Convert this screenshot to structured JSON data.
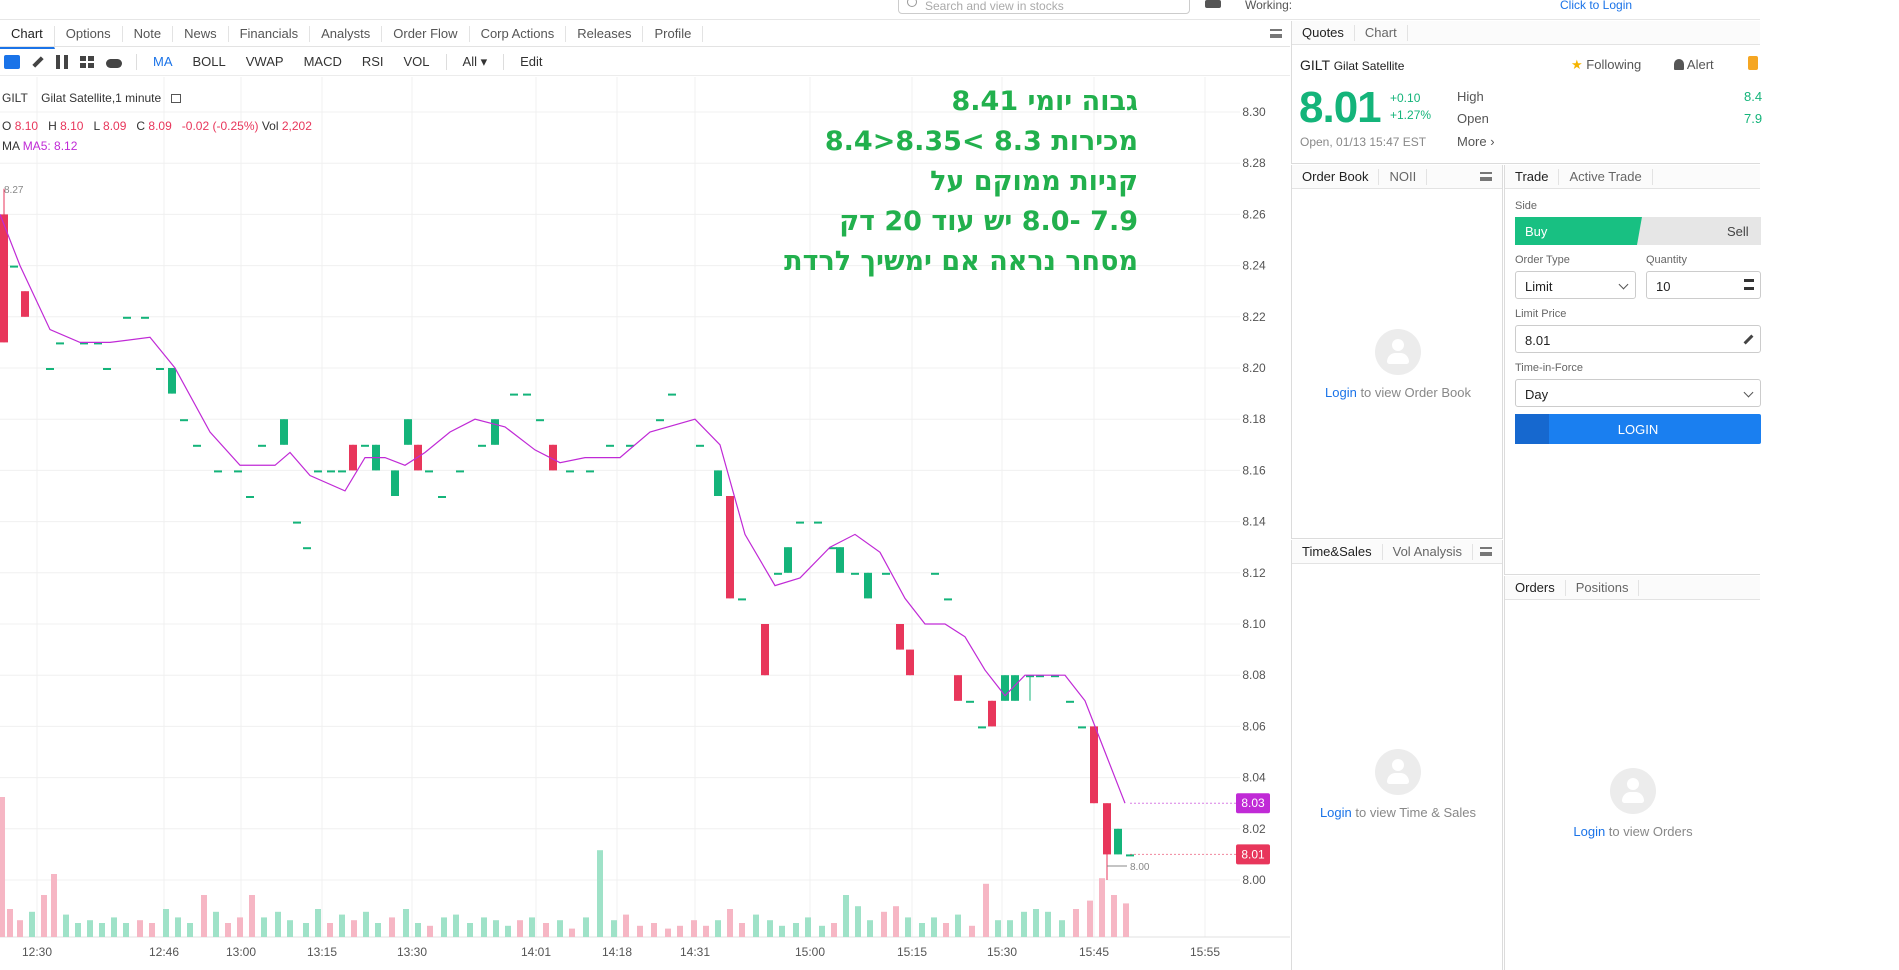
{
  "search": {
    "placeholder": "Search and view in stocks"
  },
  "topbar": {
    "status": "Working:",
    "login": "Click to Login"
  },
  "tabs": [
    "Chart",
    "Options",
    "Note",
    "News",
    "Financials",
    "Analysts",
    "Order Flow",
    "Corp Actions",
    "Releases",
    "Profile"
  ],
  "toolbar": {
    "indicators": [
      "MA",
      "BOLL",
      "VWAP",
      "MACD",
      "RSI",
      "VOL"
    ],
    "all": "All",
    "edit": "Edit"
  },
  "chart": {
    "symbol": "GILT",
    "name": "Gilat Satellite,1 minute",
    "ohlc": {
      "o_label": "O",
      "o": "8.10",
      "h_label": "H",
      "h": "8.10",
      "l_label": "L",
      "l": "8.09",
      "c_label": "C",
      "c": "8.09",
      "chg": "-0.02 (-0.25%)",
      "vol_label": "Vol",
      "vol": "2,202"
    },
    "ma": {
      "label": "MA",
      "value": "MA5: 8.12"
    },
    "high_marker": "8.27",
    "low_marker": "8.00",
    "ma_tag": "8.03",
    "price_tag": "8.01",
    "annotation": [
      "גבוה יומי 8.41",
      "מכירות 8.3 >8.35<8.4",
      "קניות ממוקם על",
      "7.9 -8.0  יש עוד 20 דק",
      "מסחר נראה אם ימשיך לרדת"
    ],
    "colors": {
      "up": "#14b47a",
      "down": "#e8365b",
      "ma": "#c02ad6",
      "up_vol": "#9fe2c8",
      "down_vol": "#f6b6c4"
    }
  },
  "chart_data": {
    "type": "candlestick",
    "x": [
      "12:30",
      "12:46",
      "13:00",
      "13:15",
      "13:30",
      "14:01",
      "14:18",
      "14:31",
      "15:00",
      "15:15",
      "15:30",
      "15:45",
      "15:55"
    ],
    "y_ticks": [
      8.3,
      8.28,
      8.26,
      8.24,
      8.22,
      8.2,
      8.18,
      8.16,
      8.14,
      8.12,
      8.1,
      8.08,
      8.06,
      8.04,
      8.02,
      8.0
    ],
    "ylim": [
      7.99,
      8.31
    ],
    "series": [
      {
        "name": "MA5",
        "last": 8.12
      }
    ],
    "last_price": 8.01,
    "grid": true
  },
  "quotes": {
    "tabs": [
      "Quotes",
      "Chart"
    ],
    "symbol": "GILT",
    "name": "Gilat Satellite",
    "following": "Following",
    "alert": "Alert",
    "price": "8.01",
    "change": "+0.10",
    "change_pct": "+1.27%",
    "high_label": "High",
    "high": "8.4",
    "open_label": "Open",
    "open": "7.9",
    "status": "Open, 01/13 15:47 EST",
    "more": "More"
  },
  "orderbook": {
    "tabs": [
      "Order Book",
      "NOII"
    ],
    "login": "Login",
    "text": " to view Order Book"
  },
  "timesales": {
    "tabs": [
      "Time&Sales",
      "Vol Analysis"
    ],
    "login": "Login",
    "text": " to view Time & Sales"
  },
  "trade": {
    "tabs": [
      "Trade",
      "Active Trade"
    ],
    "side_label": "Side",
    "buy": "Buy",
    "sell": "Sell",
    "order_type_label": "Order Type",
    "order_type": "Limit",
    "quantity_label": "Quantity",
    "quantity": "10",
    "limit_price_label": "Limit Price",
    "limit_price": "8.01",
    "tif_label": "Time-in-Force",
    "tif": "Day",
    "login_button": "LOGIN"
  },
  "orders": {
    "tabs": [
      "Orders",
      "Positions"
    ],
    "login": "Login",
    "text": " to view Orders"
  }
}
